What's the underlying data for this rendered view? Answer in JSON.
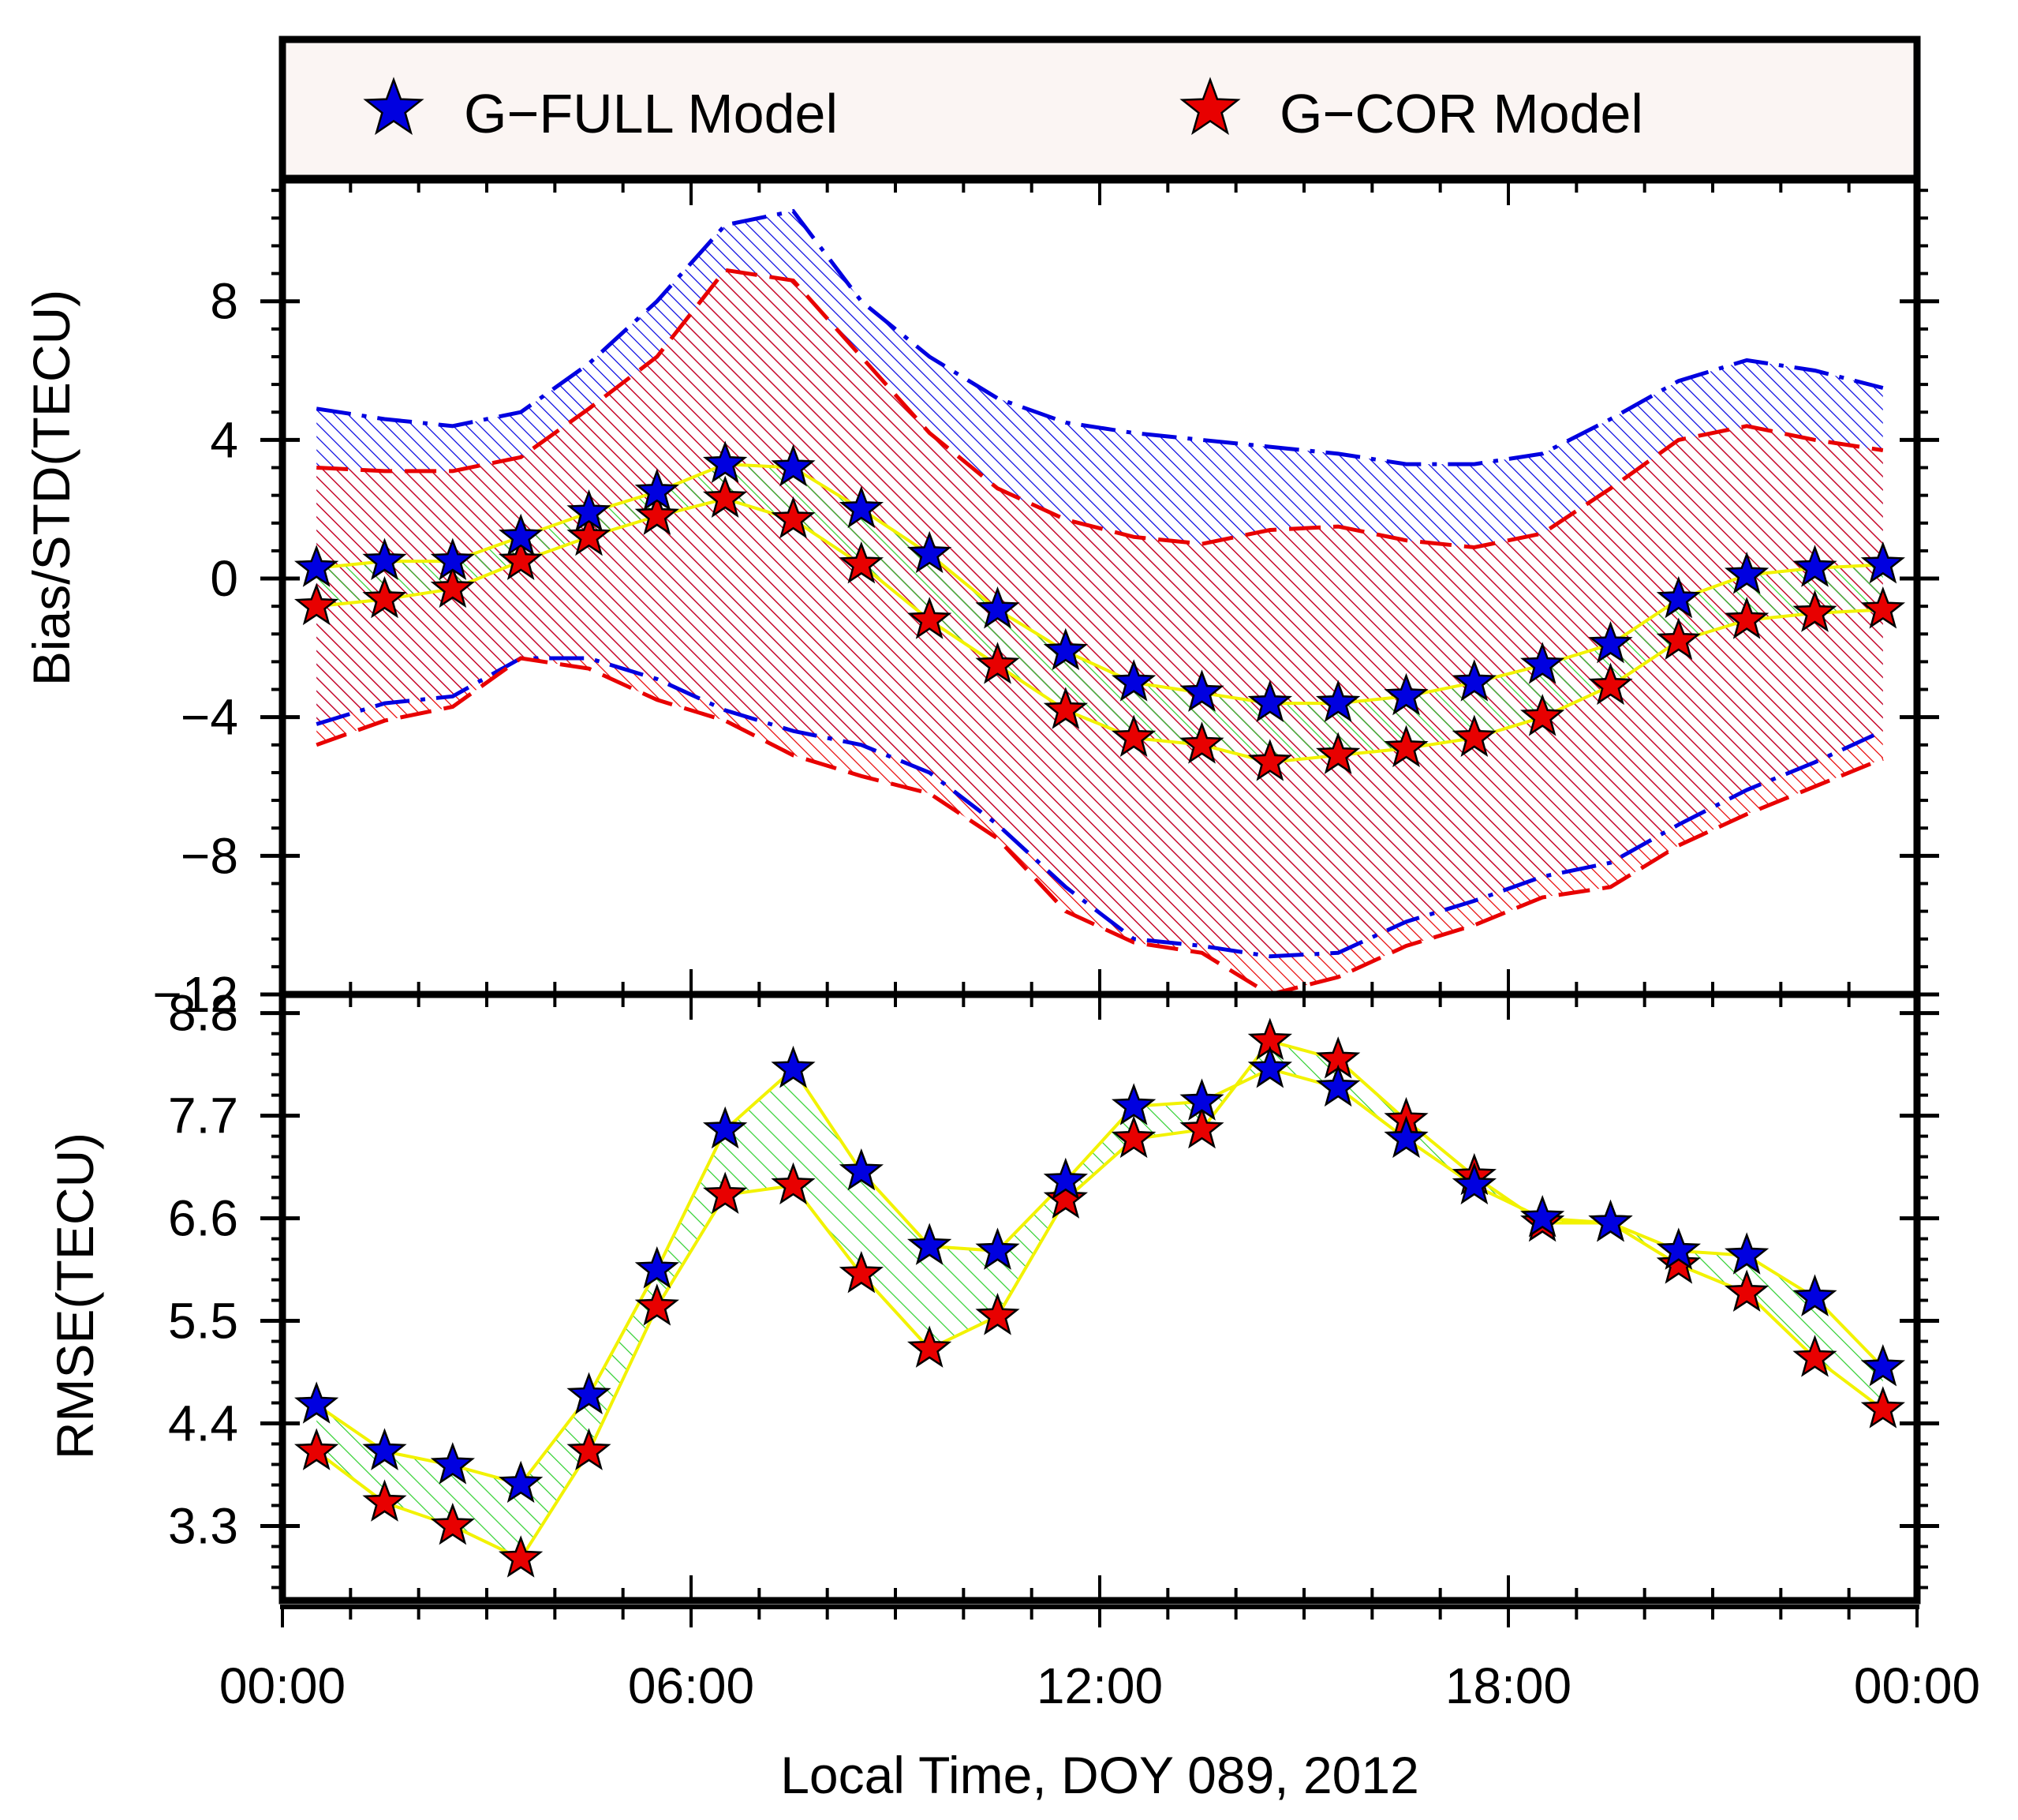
{
  "chart_data": {
    "type": "line",
    "xlabel": "Local Time, DOY 089, 2012",
    "x_ticks": [
      "00:00",
      "06:00",
      "12:00",
      "18:00",
      "00:00"
    ],
    "x_range_hours": [
      0,
      24
    ],
    "x_hours": [
      0.5,
      1.5,
      2.5,
      3.5,
      4.5,
      5.5,
      6.5,
      7.5,
      8.5,
      9.5,
      10.5,
      11.5,
      12.5,
      13.5,
      14.5,
      15.5,
      16.5,
      17.5,
      18.5,
      19.5,
      20.5,
      21.5,
      22.5,
      23.5
    ],
    "legend": [
      {
        "name": "G−FULL Model",
        "color": "#0000e0"
      },
      {
        "name": "G−COR Model",
        "color": "#e80000"
      }
    ],
    "colors": {
      "full": "#0000e0",
      "cor": "#e80000",
      "diff_fill": "#2fcf2f",
      "diff_line": "#f2f200",
      "legend_bg": "#fbf5f3"
    },
    "panels": [
      {
        "name": "bias",
        "ylabel": "Bias/STD(TECU)",
        "ylim": [
          -12,
          11.5
        ],
        "yticks": [
          8,
          4,
          0,
          -4,
          -8,
          -12
        ],
        "ytick_labels": [
          "8",
          "4",
          "0",
          "−4",
          "−8",
          "−12"
        ],
        "series": [
          {
            "name": "G-FULL bias",
            "values": [
              0.3,
              0.5,
              0.5,
              1.2,
              1.9,
              2.5,
              3.3,
              3.2,
              2.0,
              0.7,
              -0.9,
              -2.1,
              -3.0,
              -3.3,
              -3.6,
              -3.6,
              -3.4,
              -3.0,
              -2.5,
              -1.9,
              -0.6,
              0.1,
              0.3,
              0.4
            ]
          },
          {
            "name": "G-COR bias",
            "values": [
              -0.8,
              -0.6,
              -0.3,
              0.5,
              1.2,
              1.8,
              2.3,
              1.7,
              0.4,
              -1.2,
              -2.5,
              -3.8,
              -4.6,
              -4.8,
              -5.3,
              -5.1,
              -4.9,
              -4.6,
              -4.0,
              -3.1,
              -1.8,
              -1.2,
              -1.0,
              -0.9
            ]
          }
        ],
        "bands": [
          {
            "name": "G-FULL bias ± STD",
            "upper": [
              4.9,
              4.6,
              4.4,
              4.8,
              6.2,
              8.0,
              10.2,
              10.6,
              8.0,
              6.4,
              5.2,
              4.5,
              4.2,
              4.0,
              3.8,
              3.6,
              3.3,
              3.3,
              3.6,
              4.6,
              5.7,
              6.3,
              6.0,
              5.5
            ],
            "lower": [
              -4.2,
              -3.6,
              -3.4,
              -2.3,
              -2.3,
              -2.9,
              -3.8,
              -4.4,
              -4.8,
              -5.6,
              -7.1,
              -8.9,
              -10.4,
              -10.6,
              -10.9,
              -10.8,
              -9.9,
              -9.3,
              -8.6,
              -8.2,
              -7.1,
              -6.1,
              -5.3,
              -4.4
            ]
          },
          {
            "name": "G-COR bias ± STD",
            "upper": [
              3.2,
              3.1,
              3.1,
              3.5,
              4.9,
              6.4,
              8.9,
              8.6,
              6.4,
              4.2,
              2.6,
              1.7,
              1.2,
              1.0,
              1.4,
              1.5,
              1.1,
              0.9,
              1.3,
              2.6,
              4.0,
              4.4,
              4.0,
              3.7
            ],
            "lower": [
              -4.8,
              -4.1,
              -3.7,
              -2.3,
              -2.6,
              -3.5,
              -4.1,
              -5.1,
              -5.7,
              -6.2,
              -7.5,
              -9.6,
              -10.5,
              -10.8,
              -12.0,
              -11.5,
              -10.6,
              -10.0,
              -9.2,
              -8.9,
              -7.7,
              -6.8,
              -6.0,
              -5.2
            ]
          }
        ]
      },
      {
        "name": "rmse",
        "ylabel": "RMSE(TECU)",
        "ylim": [
          2.5,
          9.0
        ],
        "yticks": [
          8.8,
          7.7,
          6.6,
          5.5,
          4.4,
          3.3
        ],
        "ytick_labels": [
          "8.8",
          "7.7",
          "6.6",
          "5.5",
          "4.4",
          "3.3"
        ],
        "series": [
          {
            "name": "G-FULL RMSE",
            "values": [
              4.6,
              4.1,
              3.95,
              3.75,
              4.7,
              6.05,
              7.55,
              8.2,
              7.1,
              6.3,
              6.25,
              7.0,
              7.8,
              7.85,
              8.2,
              8.0,
              7.45,
              6.95,
              6.6,
              6.55,
              6.25,
              6.2,
              5.75,
              5.0
            ]
          },
          {
            "name": "G-COR RMSE",
            "values": [
              4.1,
              3.55,
              3.3,
              2.95,
              4.1,
              5.65,
              6.85,
              6.95,
              6.0,
              5.2,
              5.55,
              6.8,
              7.45,
              7.55,
              8.5,
              8.3,
              7.65,
              7.05,
              6.55,
              6.55,
              6.1,
              5.8,
              5.1,
              4.55
            ]
          }
        ]
      }
    ]
  }
}
